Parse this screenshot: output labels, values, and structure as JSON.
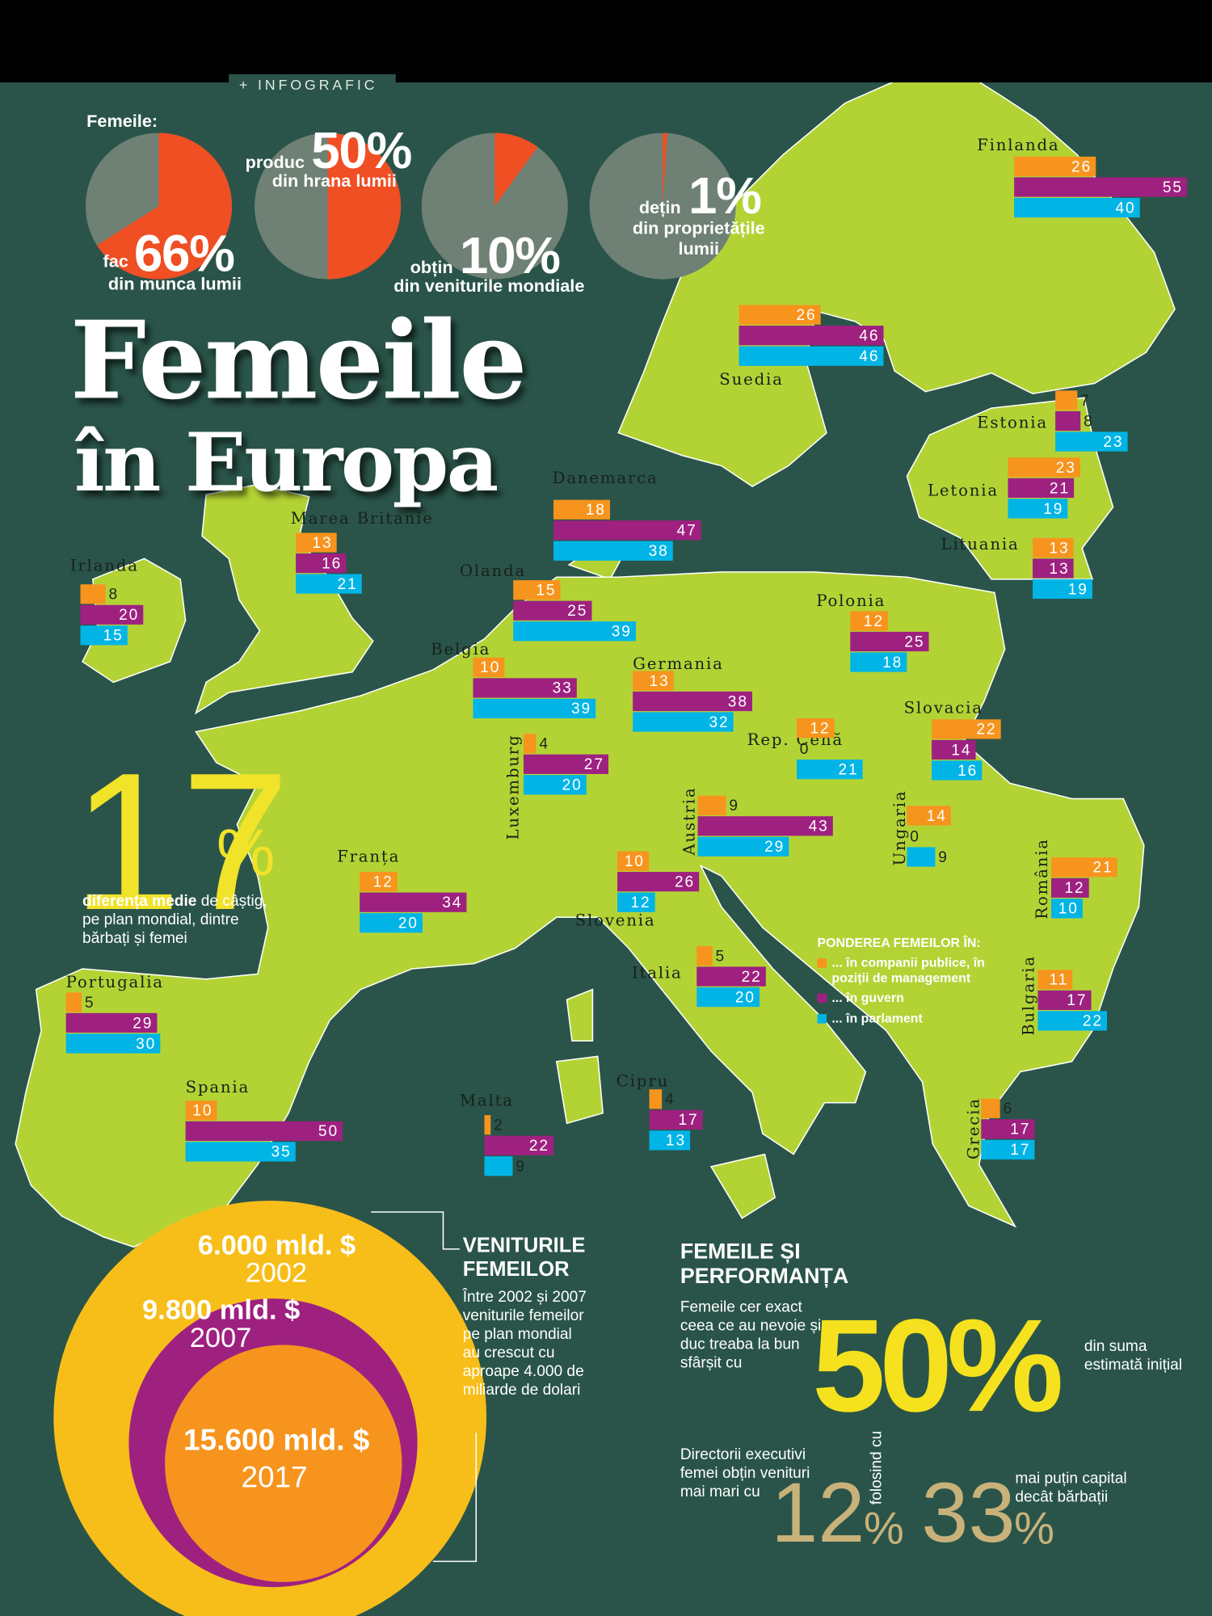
{
  "header": {
    "tag": "+ INFOGRAFIC",
    "intro": "Femeile:",
    "title_line1": "Femeile",
    "title_line2": "în Europa"
  },
  "chart_data": [
    {
      "type": "pie",
      "text_before": "fac",
      "values": [
        66
      ],
      "value_labels": [
        "66%"
      ],
      "text_after": "din munca lumii",
      "color": "#f04e23",
      "background_color": "#6e8174"
    },
    {
      "type": "pie",
      "text_before": "produc",
      "values": [
        50
      ],
      "value_labels": [
        "50%"
      ],
      "text_after": "din hrana lumii",
      "color": "#f04e23",
      "background_color": "#6e8174"
    },
    {
      "type": "pie",
      "text_before": "obțin",
      "values": [
        10
      ],
      "value_labels": [
        "10%"
      ],
      "text_after": "din veniturile mondiale",
      "color": "#f04e23",
      "background_color": "#6e8174"
    },
    {
      "type": "pie",
      "text_before": "dețin",
      "values": [
        1
      ],
      "value_labels": [
        "1%"
      ],
      "text_after": "din proprietățile lumii",
      "color": "#f04e23",
      "background_color": "#6e8174"
    },
    {
      "type": "bar",
      "orientation": "horizontal",
      "legend_title": "PONDEREA FEMEILOR ÎN:",
      "categories": [
        "Finlanda",
        "Suedia",
        "Estonia",
        "Letonia",
        "Lituania",
        "Danemarca",
        "Marea Britanie",
        "Irlanda",
        "Olanda",
        "Belgia",
        "Germania",
        "Polonia",
        "Luxemburg",
        "Rep. Cehă",
        "Slovacia",
        "Austria",
        "Ungaria",
        "Franța",
        "Slovenia",
        "România",
        "Italia",
        "Portugalia",
        "Bulgaria",
        "Spania",
        "Malta",
        "Cipru",
        "Grecia"
      ],
      "series": [
        {
          "name": "... în companii publice, în poziții de management",
          "color": "#f7941d",
          "values": [
            26,
            26,
            7,
            23,
            13,
            18,
            13,
            8,
            15,
            10,
            13,
            12,
            4,
            12,
            22,
            9,
            14,
            12,
            10,
            21,
            5,
            5,
            11,
            10,
            2,
            4,
            6
          ]
        },
        {
          "name": "... în guvern",
          "color": "#9e2180",
          "values": [
            55,
            46,
            8,
            21,
            13,
            47,
            16,
            20,
            25,
            33,
            38,
            25,
            27,
            0,
            14,
            43,
            0,
            34,
            26,
            12,
            22,
            29,
            17,
            50,
            22,
            17,
            17
          ]
        },
        {
          "name": "... în parlament",
          "color": "#00b5e6",
          "values": [
            40,
            46,
            23,
            19,
            19,
            38,
            21,
            15,
            39,
            39,
            32,
            18,
            20,
            21,
            16,
            29,
            9,
            20,
            12,
            10,
            20,
            30,
            22,
            35,
            9,
            13,
            17
          ]
        }
      ]
    }
  ],
  "wage_gap": {
    "number": "17",
    "unit": "%",
    "text_bold": "diferența medie",
    "text": "de câștig, pe plan mondial, dintre bărbați și femei"
  },
  "income": {
    "title": "VENITURILE FEMEILOR",
    "text": "Între 2002 și 2007 veniturile femeilor pe plan mondial au crescut cu aproape 4.000 de miliarde de dolari",
    "circles": [
      {
        "amount": "6.000 mld. $",
        "year": "2002"
      },
      {
        "amount": "9.800 mld. $",
        "year": "2007"
      },
      {
        "amount": "15.600 mld. $",
        "year": "2017"
      }
    ]
  },
  "performance": {
    "title": "FEMEILE ȘI PERFORMANȚA",
    "text": "Femeile cer exact ceea ce au nevoie și duc treaba la bun sfârșit cu",
    "stat": "50%",
    "stat_text": "din suma estimată inițial",
    "ceo_text": "Directorii executivi femei obțin venituri mai mari cu",
    "ceo_number": "12",
    "ceo_unit": "%",
    "middle_text": "folosind cu",
    "capital_number": "33",
    "capital_unit": "%",
    "capital_text": "mai puțin capital decât bărbații"
  }
}
